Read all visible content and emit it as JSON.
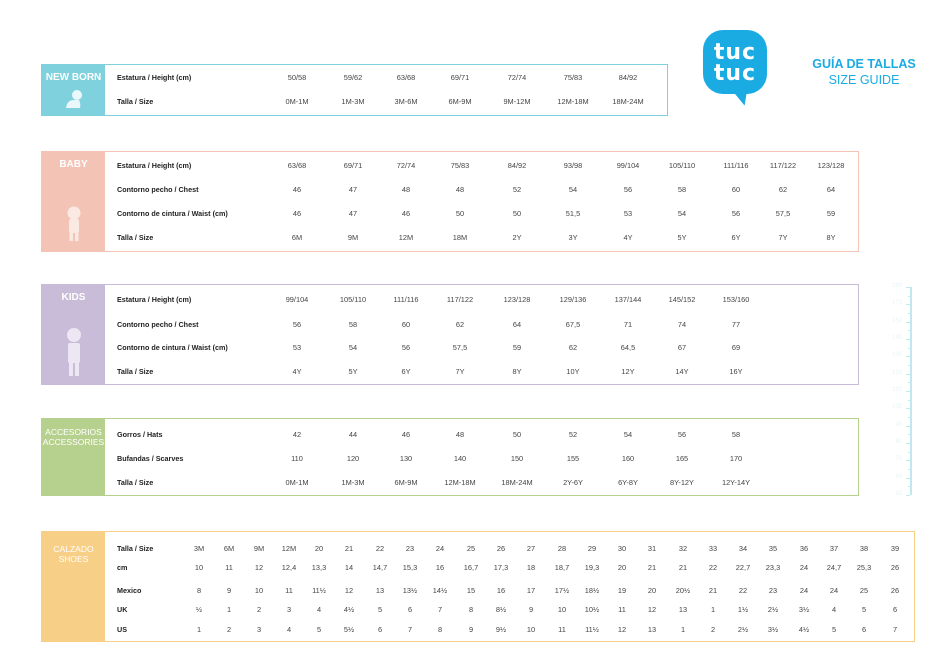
{
  "header": {
    "logo_line1": "tuc",
    "logo_line2": "tuc",
    "title": "GUÍA DE TALLAS",
    "subtitle": "SIZE GUIDE",
    "brand_color": "#1aabe2"
  },
  "newborn": {
    "label": "NEW BORN",
    "color": "#7fd1de",
    "icon": "baby-crawling-icon",
    "rows": [
      {
        "label": "Estatura / Height (cm)",
        "values": [
          "50/58",
          "59/62",
          "63/68",
          "69/71",
          "72/74",
          "75/83",
          "84/92"
        ]
      },
      {
        "label": "Talla / Size",
        "values": [
          "0M-1M",
          "1M-3M",
          "3M-6M",
          "6M-9M",
          "9M-12M",
          "12M-18M",
          "18M-24M"
        ]
      }
    ]
  },
  "baby": {
    "label": "BABY",
    "color": "#f3c3b6",
    "icon": "toddler-figure-icon",
    "rows": [
      {
        "label": "Estatura / Height (cm)",
        "values": [
          "63/68",
          "69/71",
          "72/74",
          "75/83",
          "84/92",
          "93/98",
          "99/104",
          "105/110",
          "111/116",
          "117/122",
          "123/128"
        ]
      },
      {
        "label": "Contorno pecho / Chest",
        "values": [
          "46",
          "47",
          "48",
          "48",
          "52",
          "54",
          "56",
          "58",
          "60",
          "62",
          "64"
        ]
      },
      {
        "label": "Contorno de cintura / Waist (cm)",
        "values": [
          "46",
          "47",
          "46",
          "50",
          "50",
          "51,5",
          "53",
          "54",
          "56",
          "57,5",
          "59"
        ]
      },
      {
        "label": "Talla / Size",
        "values": [
          "6M",
          "9M",
          "12M",
          "18M",
          "2Y",
          "3Y",
          "4Y",
          "5Y",
          "6Y",
          "7Y",
          "8Y"
        ]
      }
    ]
  },
  "kids": {
    "label": "KIDS",
    "color": "#c8bcd9",
    "icon": "child-figure-icon",
    "rows": [
      {
        "label": "Estatura / Height (cm)",
        "values": [
          "99/104",
          "105/110",
          "111/116",
          "117/122",
          "123/128",
          "129/136",
          "137/144",
          "145/152",
          "153/160"
        ]
      },
      {
        "label": "Contorno pecho / Chest",
        "values": [
          "56",
          "58",
          "60",
          "62",
          "64",
          "67,5",
          "71",
          "74",
          "77"
        ]
      },
      {
        "label": "Contorno de cintura / Waist (cm)",
        "values": [
          "53",
          "54",
          "56",
          "57,5",
          "59",
          "62",
          "64,5",
          "67",
          "69"
        ]
      },
      {
        "label": "Talla / Size",
        "values": [
          "4Y",
          "5Y",
          "6Y",
          "7Y",
          "8Y",
          "10Y",
          "12Y",
          "14Y",
          "16Y"
        ]
      }
    ]
  },
  "accessories": {
    "label": "ACCESORIOS",
    "label2": "ACCESSORIES",
    "color": "#b6d08e",
    "rows": [
      {
        "label": "Gorros / Hats",
        "values": [
          "42",
          "44",
          "46",
          "48",
          "50",
          "52",
          "54",
          "56",
          "58"
        ]
      },
      {
        "label": "Bufandas / Scarves",
        "values": [
          "110",
          "120",
          "130",
          "140",
          "150",
          "155",
          "160",
          "165",
          "170"
        ]
      },
      {
        "label": "Talla / Size",
        "values": [
          "0M-1M",
          "1M-3M",
          "6M-9M",
          "12M-18M",
          "18M-24M",
          "2Y-6Y",
          "6Y-8Y",
          "8Y-12Y",
          "12Y-14Y"
        ]
      }
    ]
  },
  "shoes": {
    "label": "CALZADO",
    "label2": "SHOES",
    "color": "#f8cf86",
    "rows": [
      {
        "label": "Talla / Size",
        "values": [
          "3M",
          "6M",
          "9M",
          "12M",
          "20",
          "21",
          "22",
          "23",
          "24",
          "25",
          "26",
          "27",
          "28",
          "29",
          "30",
          "31",
          "32",
          "33",
          "34",
          "35",
          "36",
          "37",
          "38",
          "39"
        ]
      },
      {
        "label": "cm",
        "values": [
          "10",
          "11",
          "12",
          "12,4",
          "13,3",
          "14",
          "14,7",
          "15,3",
          "16",
          "16,7",
          "17,3",
          "18",
          "18,7",
          "19,3",
          "20",
          "21",
          "21",
          "22",
          "22,7",
          "23,3",
          "24",
          "24,7",
          "25,3",
          "26"
        ]
      },
      {
        "label": "Mexico",
        "values": [
          "8",
          "9",
          "10",
          "11",
          "11½",
          "12",
          "13",
          "13½",
          "14½",
          "15",
          "16",
          "17",
          "17½",
          "18½",
          "19",
          "20",
          "20½",
          "21",
          "22",
          "23",
          "24",
          "24",
          "25",
          "26"
        ]
      },
      {
        "label": "UK",
        "values": [
          "½",
          "1",
          "2",
          "3",
          "4",
          "4½",
          "5",
          "6",
          "7",
          "8",
          "8½",
          "9",
          "10",
          "10½",
          "11",
          "12",
          "13",
          "1",
          "1½",
          "2½",
          "3½",
          "4",
          "5",
          "6"
        ]
      },
      {
        "label": "US",
        "values": [
          "1",
          "2",
          "3",
          "4",
          "5",
          "5½",
          "6",
          "7",
          "8",
          "9",
          "9½",
          "10",
          "11",
          "11½",
          "12",
          "13",
          "1",
          "2",
          "2½",
          "3½",
          "4½",
          "5",
          "6",
          "7"
        ]
      }
    ]
  },
  "ruler": {
    "labels": [
      "180",
      "170",
      "150",
      "140",
      "130",
      "120",
      "110",
      "100",
      "90",
      "80",
      "70",
      "60",
      "50"
    ],
    "color": "#bfe9ee"
  }
}
